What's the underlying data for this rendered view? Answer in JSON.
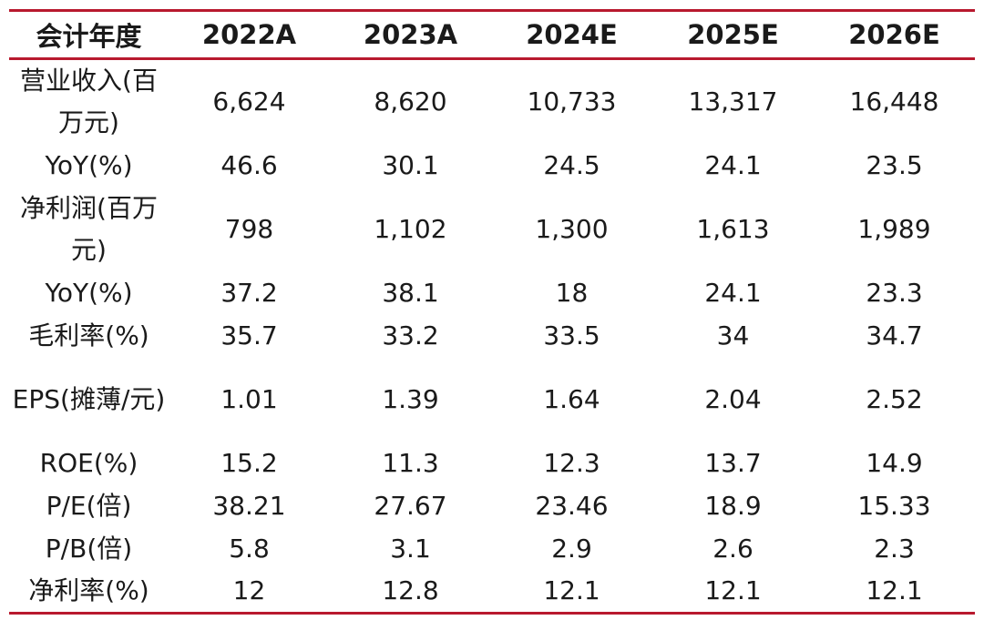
{
  "table": {
    "headers": [
      "会计年度",
      "2022A",
      "2023A",
      "2024E",
      "2025E",
      "2026E"
    ],
    "rows": [
      {
        "label": "营业收入(百万元)",
        "values": [
          "6,624",
          "8,620",
          "10,733",
          "13,317",
          "16,448"
        ]
      },
      {
        "label": "YoY(%)",
        "values": [
          "46.6",
          "30.1",
          "24.5",
          "24.1",
          "23.5"
        ]
      },
      {
        "label": "净利润(百万元)",
        "values": [
          "798",
          "1,102",
          "1,300",
          "1,613",
          "1,989"
        ]
      },
      {
        "label": "YoY(%)",
        "values": [
          "37.2",
          "38.1",
          "18",
          "24.1",
          "23.3"
        ]
      },
      {
        "label": "毛利率(%)",
        "values": [
          "35.7",
          "33.2",
          "33.5",
          "34",
          "34.7"
        ]
      },
      {
        "label": "EPS(摊薄/元)",
        "values": [
          "1.01",
          "1.39",
          "1.64",
          "2.04",
          "2.52"
        ]
      },
      {
        "label": "ROE(%)",
        "values": [
          "15.2",
          "11.3",
          "12.3",
          "13.7",
          "14.9"
        ]
      },
      {
        "label": "P/E(倍)",
        "values": [
          "38.21",
          "27.67",
          "23.46",
          "18.9",
          "15.33"
        ]
      },
      {
        "label": "P/B(倍)",
        "values": [
          "5.8",
          "3.1",
          "2.9",
          "2.6",
          "2.3"
        ]
      },
      {
        "label": "净利率(%)",
        "values": [
          "12",
          "12.8",
          "12.1",
          "12.1",
          "12.1"
        ]
      }
    ]
  },
  "colors": {
    "rule": "#b8192e",
    "text": "#1a1a1a"
  }
}
